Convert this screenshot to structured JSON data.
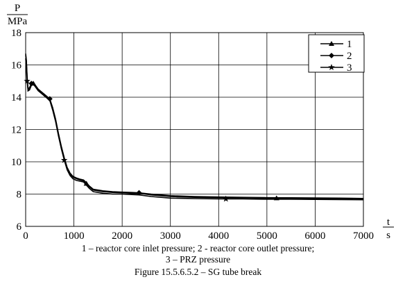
{
  "chart_data": {
    "type": "line",
    "title": "",
    "ylabel": "P",
    "yunit": "MPa",
    "xlabel": "t",
    "xunit": "s",
    "xlim": [
      0,
      7000
    ],
    "ylim": [
      6,
      18
    ],
    "xticks": [
      0,
      1000,
      2000,
      3000,
      4000,
      5000,
      6000,
      7000
    ],
    "yticks": [
      6,
      8,
      10,
      12,
      14,
      16,
      18
    ],
    "grid": true,
    "legend_position": "top-right",
    "series": [
      {
        "name": "1",
        "marker": "triangle",
        "x": [
          0,
          15,
          30,
          50,
          80,
          120,
          160,
          200,
          260,
          320,
          400,
          500,
          560,
          620,
          680,
          740,
          800,
          860,
          920,
          980,
          1050,
          1120,
          1200,
          1260,
          1320,
          1400,
          1600,
          1800,
          2000,
          2200,
          2350,
          2600,
          3000,
          3500,
          4000,
          4500,
          5000,
          5500,
          6000,
          6500,
          7000
        ],
        "y": [
          16.6,
          16.2,
          15.2,
          14.4,
          14.5,
          14.8,
          14.85,
          14.7,
          14.45,
          14.3,
          14.1,
          13.85,
          13.3,
          12.6,
          11.7,
          10.9,
          10.2,
          9.6,
          9.25,
          9.05,
          8.95,
          8.88,
          8.82,
          8.65,
          8.45,
          8.25,
          8.15,
          8.1,
          8.08,
          8.05,
          8.05,
          7.95,
          7.85,
          7.8,
          7.78,
          7.77,
          7.75,
          7.75,
          7.73,
          7.72,
          7.71
        ]
      },
      {
        "name": "2",
        "marker": "diamond",
        "x": [
          0,
          15,
          30,
          50,
          80,
          120,
          160,
          200,
          260,
          320,
          400,
          500,
          560,
          620,
          680,
          740,
          800,
          860,
          920,
          980,
          1050,
          1120,
          1200,
          1260,
          1320,
          1400,
          1600,
          1800,
          2000,
          2200,
          2350,
          2600,
          3000,
          3500,
          4000,
          4500,
          5000,
          5500,
          6000,
          6500,
          7000
        ],
        "y": [
          16.7,
          16.3,
          15.3,
          14.5,
          14.6,
          14.85,
          14.9,
          14.75,
          14.5,
          14.35,
          14.15,
          13.9,
          13.35,
          12.65,
          11.75,
          10.95,
          10.25,
          9.65,
          9.3,
          9.1,
          9.0,
          8.93,
          8.87,
          8.7,
          8.5,
          8.3,
          8.2,
          8.15,
          8.12,
          8.1,
          8.08,
          8.0,
          7.9,
          7.85,
          7.82,
          7.8,
          7.78,
          7.77,
          7.76,
          7.75,
          7.73
        ]
      },
      {
        "name": "3",
        "marker": "star",
        "x": [
          0,
          15,
          30,
          50,
          80,
          120,
          160,
          200,
          260,
          320,
          400,
          500,
          560,
          620,
          680,
          740,
          800,
          860,
          920,
          980,
          1050,
          1120,
          1200,
          1260,
          1320,
          1400,
          1600,
          1800,
          2000,
          2200,
          2350,
          2600,
          3000,
          3500,
          4000,
          4500,
          5000,
          5500,
          6000,
          6500,
          7000
        ],
        "y": [
          16.4,
          15.8,
          15.0,
          14.4,
          14.45,
          14.75,
          14.8,
          14.65,
          14.4,
          14.25,
          14.05,
          13.8,
          13.2,
          12.5,
          11.6,
          10.8,
          10.1,
          9.5,
          9.15,
          8.95,
          8.85,
          8.8,
          8.75,
          8.55,
          8.35,
          8.15,
          8.05,
          8.0,
          8.0,
          7.97,
          7.95,
          7.85,
          7.75,
          7.72,
          7.7,
          7.7,
          7.68,
          7.68,
          7.67,
          7.66,
          7.65
        ]
      }
    ]
  },
  "caption": {
    "line1": "1 – reactor core inlet pressure; 2 - reactor core outlet pressure;",
    "line2": "3 – PRZ pressure",
    "figure": "Figure 15.5.6.5.2 – SG tube break"
  }
}
